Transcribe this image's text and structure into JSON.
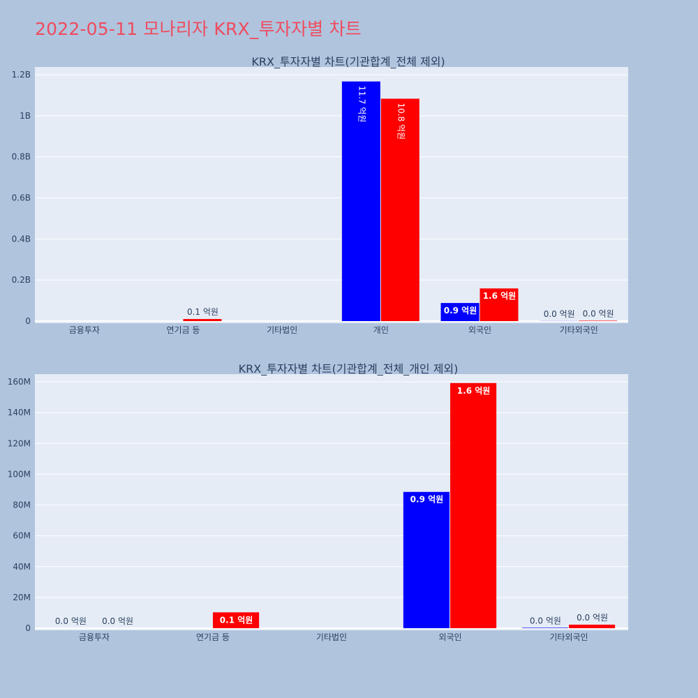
{
  "page_title": "2022-05-11 모나리자 KRX_투자자별 차트",
  "colors": {
    "buy": "#0000ff",
    "sell": "#ff0000",
    "title": "#ef4b5e"
  },
  "chart_data": [
    {
      "type": "bar",
      "title": "KRX_투자자별 차트(기관합계_전체 제외)",
      "categories": [
        "금융투자",
        "연기금 등",
        "기타법인",
        "개인",
        "외국인",
        "기타외국인"
      ],
      "series": [
        {
          "color": "#0000ff",
          "values": [
            0,
            0,
            0,
            1167000000,
            88000000,
            500000
          ],
          "labels": [
            "",
            "",
            "",
            "11.7 억원",
            "0.9 억원",
            "0.0 억원"
          ]
        },
        {
          "color": "#ff0000",
          "values": [
            0,
            10000000,
            0,
            1083000000,
            159000000,
            2000000
          ],
          "labels": [
            "",
            "0.1 억원",
            "",
            "10.8 억원",
            "1.6 억원",
            "0.0 억원"
          ]
        }
      ],
      "ylim": [
        0,
        1200000000.0
      ],
      "yticks": [
        0,
        200000000,
        400000000,
        600000000,
        800000000,
        1000000000,
        1200000000
      ],
      "ytick_labels": [
        "0",
        "0.2B",
        "0.4B",
        "0.6B",
        "0.8B",
        "1B",
        "1.2B"
      ],
      "grid": true
    },
    {
      "type": "bar",
      "title": "KRX_투자자별 차트(기관합계_전체_개인 제외)",
      "categories": [
        "금융투자",
        "연기금 등",
        "기타법인",
        "외국인",
        "기타외국인"
      ],
      "series": [
        {
          "color": "#0000ff",
          "values": [
            0,
            0,
            0,
            88500000,
            300000
          ],
          "labels": [
            "0.0 억원",
            "",
            "",
            "0.9 억원",
            "0.0 억원"
          ]
        },
        {
          "color": "#ff0000",
          "values": [
            0,
            10300000,
            0,
            159200000,
            2300000
          ],
          "labels": [
            "0.0 억원",
            "0.1 억원",
            "",
            "1.6 억원",
            "0.0 억원"
          ]
        }
      ],
      "ylim": [
        0,
        160000000
      ],
      "yticks": [
        0,
        20000000,
        40000000,
        60000000,
        80000000,
        100000000,
        120000000,
        140000000,
        160000000
      ],
      "ytick_labels": [
        "0",
        "20M",
        "40M",
        "60M",
        "80M",
        "100M",
        "120M",
        "140M",
        "160M"
      ],
      "grid": true
    }
  ]
}
